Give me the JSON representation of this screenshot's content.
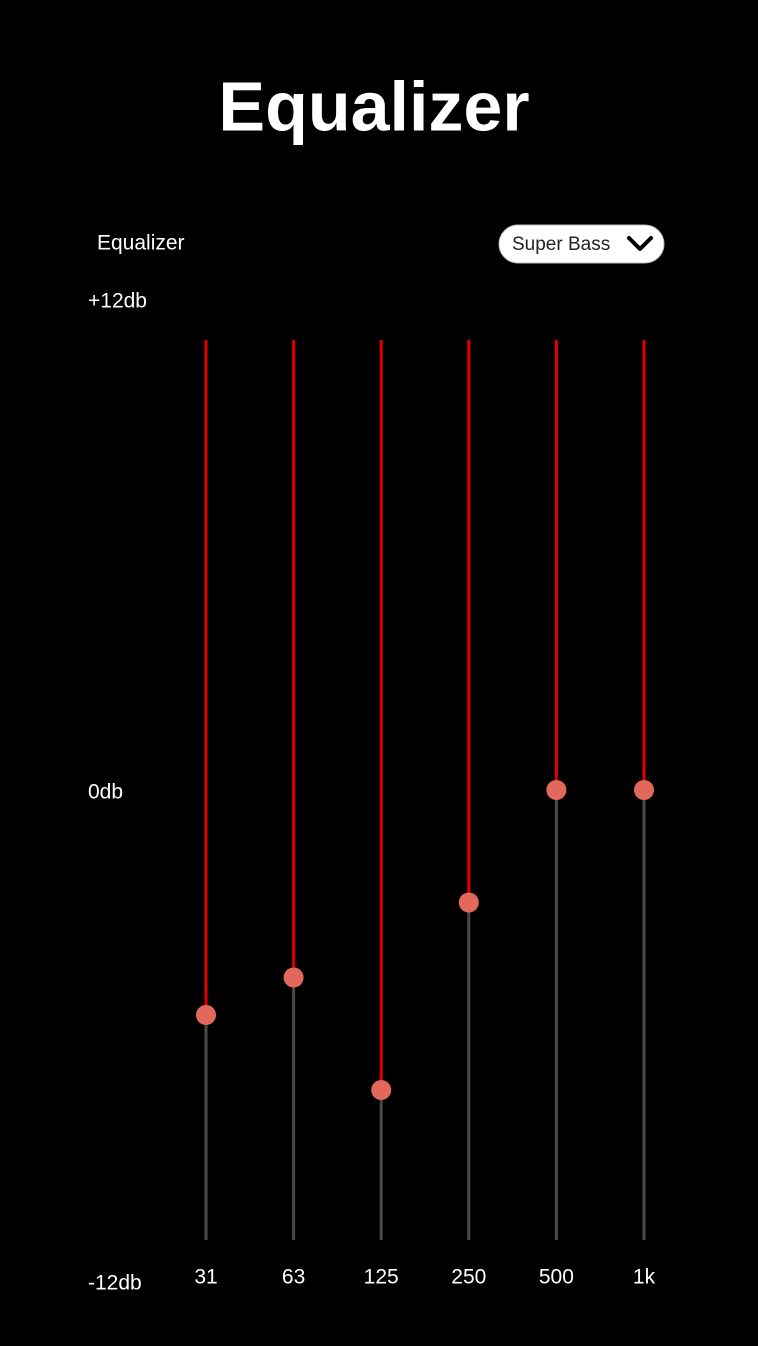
{
  "header": {
    "title": "Equalizer"
  },
  "panel": {
    "label": "Equalizer",
    "preset": "Super Bass"
  },
  "scale": {
    "range": [
      -12,
      12
    ],
    "ticks": [
      {
        "value": 12,
        "label": "+12db"
      },
      {
        "value": 0,
        "label": "0db"
      },
      {
        "value": -12,
        "label": "-12db"
      }
    ]
  },
  "bands": [
    {
      "label": "31",
      "value": -6
    },
    {
      "label": "63",
      "value": -5
    },
    {
      "label": "125",
      "value": -8
    },
    {
      "label": "250",
      "value": -3
    },
    {
      "label": "500",
      "value": 0
    },
    {
      "label": "1k",
      "value": 0
    }
  ]
}
